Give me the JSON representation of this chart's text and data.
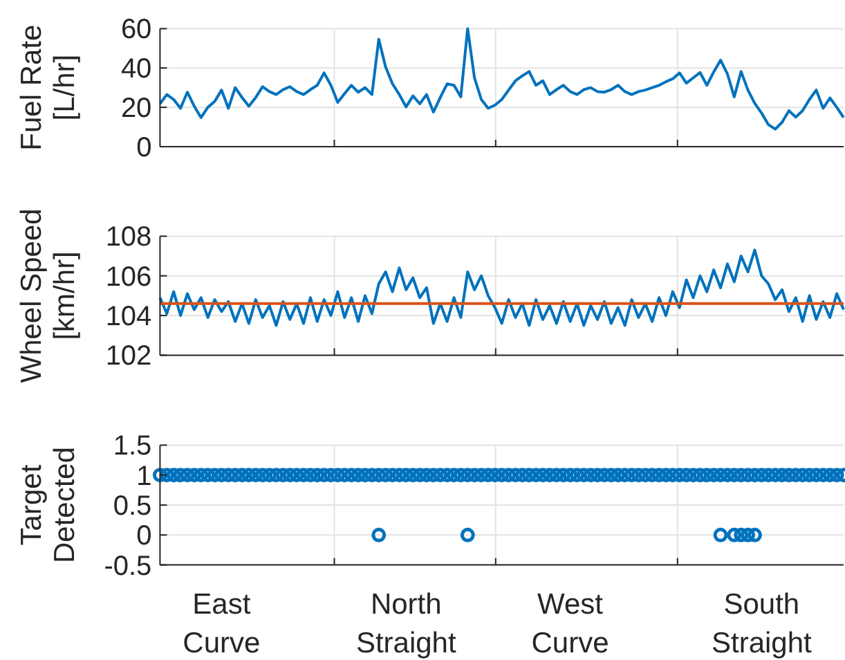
{
  "chart_data": [
    {
      "type": "line",
      "ylabel": "Fuel Rate\n[L/hr]",
      "categories": [
        null,
        null,
        null,
        null,
        null,
        null,
        null,
        null,
        null,
        null,
        null,
        null,
        null,
        null,
        null,
        null,
        null,
        null,
        null,
        null,
        null,
        null,
        null,
        null,
        null,
        null,
        null,
        null,
        null,
        null,
        null,
        null,
        null,
        null,
        null,
        null,
        null,
        null,
        null,
        null,
        null,
        null,
        null,
        null,
        null,
        null,
        null,
        null,
        null,
        null,
        null,
        null,
        null,
        null,
        null,
        null,
        null,
        null,
        null,
        null,
        null,
        null,
        null,
        null,
        null,
        null,
        null,
        null,
        null,
        null,
        null,
        null,
        null,
        null,
        null,
        null,
        null,
        null,
        null,
        null,
        null,
        null,
        null,
        null,
        null,
        null,
        null,
        null,
        null,
        null,
        null,
        null,
        null,
        null,
        null,
        null,
        null,
        null,
        null,
        null,
        null
      ],
      "ylim": [
        0,
        60
      ],
      "yticks": [
        0,
        20,
        40,
        60
      ],
      "tick_labels": "y",
      "grid": true,
      "series": [
        {
          "color": "#0072bd",
          "values": [
            21.8,
            26.5,
            24,
            19.5,
            27.7,
            20.6,
            14.8,
            20,
            23,
            28.8,
            19.5,
            30,
            25,
            20.6,
            25,
            30.5,
            28,
            26.5,
            29,
            30.5,
            28,
            26.5,
            29,
            31.2,
            37.5,
            31.2,
            22.5,
            27,
            31.2,
            27.7,
            30,
            26.5,
            54.6,
            40.5,
            32,
            26.5,
            20.2,
            25.8,
            21.8,
            26.5,
            17.6,
            25,
            31.9,
            31.2,
            25.3,
            60,
            35,
            24,
            19.5,
            21.1,
            24,
            28.8,
            33.5,
            36,
            38.2,
            31.2,
            33.5,
            26.5,
            29,
            31.2,
            28,
            26.5,
            29,
            30,
            28,
            27.7,
            29,
            31.2,
            28,
            26.5,
            28,
            28.8,
            30,
            31.2,
            33,
            34.5,
            37.5,
            32.3,
            35,
            37.7,
            31.2,
            38,
            44,
            37,
            25.3,
            38.2,
            28.8,
            22,
            17.1,
            11.2,
            8.9,
            12.4,
            18.3,
            15,
            18.3,
            24,
            28.8,
            19.5,
            24.8,
            20,
            14.8
          ]
        }
      ]
    },
    {
      "type": "line",
      "ylabel": "Wheel Speed\n[km/hr]",
      "categories": [
        null,
        null,
        null,
        null,
        null,
        null,
        null,
        null,
        null,
        null,
        null,
        null,
        null,
        null,
        null,
        null,
        null,
        null,
        null,
        null,
        null,
        null,
        null,
        null,
        null,
        null,
        null,
        null,
        null,
        null,
        null,
        null,
        null,
        null,
        null,
        null,
        null,
        null,
        null,
        null,
        null,
        null,
        null,
        null,
        null,
        null,
        null,
        null,
        null,
        null,
        null,
        null,
        null,
        null,
        null,
        null,
        null,
        null,
        null,
        null,
        null,
        null,
        null,
        null,
        null,
        null,
        null,
        null,
        null,
        null,
        null,
        null,
        null,
        null,
        null,
        null,
        null,
        null,
        null,
        null,
        null,
        null,
        null,
        null,
        null,
        null,
        null,
        null,
        null,
        null,
        null,
        null,
        null,
        null,
        null,
        null,
        null,
        null,
        null,
        null,
        null
      ],
      "ylim": [
        102,
        108
      ],
      "yticks": [
        102,
        104,
        106,
        108
      ],
      "tick_labels": "y",
      "grid": true,
      "series": [
        {
          "color": "#0072bd",
          "values": [
            104.9,
            104.1,
            105.2,
            104.0,
            105.1,
            104.3,
            104.9,
            103.9,
            104.8,
            104.2,
            104.7,
            103.7,
            104.6,
            103.6,
            104.8,
            103.9,
            104.5,
            103.5,
            104.7,
            103.8,
            104.6,
            103.6,
            104.9,
            103.7,
            104.8,
            104.0,
            105.2,
            103.9,
            104.9,
            103.7,
            105.0,
            104.1,
            105.6,
            106.2,
            105.2,
            106.4,
            105.3,
            105.9,
            104.9,
            105.4,
            103.6,
            104.6,
            103.7,
            104.9,
            103.9,
            106.2,
            105.3,
            106.0,
            105.0,
            104.4,
            103.6,
            104.8,
            103.9,
            104.6,
            103.5,
            104.8,
            103.8,
            104.5,
            103.6,
            104.7,
            103.7,
            104.6,
            103.5,
            104.5,
            103.8,
            104.7,
            103.6,
            104.4,
            103.5,
            104.8,
            103.9,
            104.6,
            103.7,
            104.9,
            104.0,
            105.2,
            104.4,
            105.8,
            104.9,
            106.0,
            105.2,
            106.3,
            105.4,
            106.6,
            105.7,
            107.0,
            106.2,
            107.3,
            106.0,
            105.6,
            104.8,
            105.3,
            104.2,
            104.9,
            103.7,
            105.0,
            103.8,
            104.7,
            103.9,
            105.1,
            104.3
          ]
        },
        {
          "color": "#d95319",
          "values": [
            104.6,
            104.6,
            104.6,
            104.6,
            104.6,
            104.6,
            104.6,
            104.6,
            104.6,
            104.6,
            104.6,
            104.6,
            104.6,
            104.6,
            104.6,
            104.6,
            104.6,
            104.6,
            104.6,
            104.6,
            104.6,
            104.6,
            104.6,
            104.6,
            104.6,
            104.6,
            104.6,
            104.6,
            104.6,
            104.6,
            104.6,
            104.6,
            104.6,
            104.6,
            104.6,
            104.6,
            104.6,
            104.6,
            104.6,
            104.6,
            104.6,
            104.6,
            104.6,
            104.6,
            104.6,
            104.6,
            104.6,
            104.6,
            104.6,
            104.6,
            104.6,
            104.6,
            104.6,
            104.6,
            104.6,
            104.6,
            104.6,
            104.6,
            104.6,
            104.6,
            104.6,
            104.6,
            104.6,
            104.6,
            104.6,
            104.6,
            104.6,
            104.6,
            104.6,
            104.6,
            104.6,
            104.6,
            104.6,
            104.6,
            104.6,
            104.6,
            104.6,
            104.6,
            104.6,
            104.6,
            104.6,
            104.6,
            104.6,
            104.6,
            104.6,
            104.6,
            104.6,
            104.6,
            104.6,
            104.6,
            104.6,
            104.6,
            104.6,
            104.6,
            104.6,
            104.6,
            104.6,
            104.6,
            104.6,
            104.6,
            104.6
          ]
        }
      ]
    },
    {
      "type": "scatter",
      "ylabel": "Target\nDetected",
      "marker": "circle",
      "categories": [
        null,
        null,
        null,
        null,
        null,
        null,
        null,
        null,
        null,
        "East\nCurve",
        null,
        null,
        null,
        null,
        null,
        null,
        null,
        null,
        null,
        null,
        null,
        null,
        null,
        null,
        null,
        null,
        null,
        null,
        null,
        null,
        null,
        null,
        null,
        null,
        null,
        null,
        "North\nStraight",
        null,
        null,
        null,
        null,
        null,
        null,
        null,
        null,
        null,
        null,
        null,
        null,
        null,
        null,
        null,
        null,
        null,
        null,
        null,
        null,
        null,
        null,
        null,
        "West\nCurve",
        null,
        null,
        null,
        null,
        null,
        null,
        null,
        null,
        null,
        null,
        null,
        null,
        null,
        null,
        null,
        null,
        null,
        null,
        null,
        null,
        null,
        null,
        null,
        null,
        null,
        null,
        null,
        "South\nStraight",
        null,
        null,
        null,
        null,
        null,
        null,
        null,
        null,
        null,
        null,
        null,
        null
      ],
      "ylim": [
        -0.5,
        1.5
      ],
      "yticks": [
        -0.5,
        0,
        0.5,
        1,
        1.5
      ],
      "grid": true,
      "series": [
        {
          "color": "#0072bd",
          "values": [
            1,
            1,
            1,
            1,
            1,
            1,
            1,
            1,
            1,
            1,
            1,
            1,
            1,
            1,
            1,
            1,
            1,
            1,
            1,
            1,
            1,
            1,
            1,
            1,
            1,
            1,
            1,
            1,
            1,
            1,
            1,
            1,
            1,
            1,
            1,
            1,
            1,
            1,
            1,
            1,
            1,
            1,
            1,
            1,
            1,
            1,
            1,
            1,
            1,
            1,
            1,
            1,
            1,
            1,
            1,
            1,
            1,
            1,
            1,
            1,
            1,
            1,
            1,
            1,
            1,
            1,
            1,
            1,
            1,
            1,
            1,
            1,
            1,
            1,
            1,
            1,
            1,
            1,
            1,
            1,
            1,
            1,
            1,
            1,
            1,
            1,
            1,
            1,
            1,
            1,
            1,
            1,
            1,
            1,
            1,
            1,
            1,
            1,
            1,
            1,
            1
          ]
        },
        {
          "color": "#0072bd",
          "values": [
            null,
            null,
            null,
            null,
            null,
            null,
            null,
            null,
            null,
            null,
            null,
            null,
            null,
            null,
            null,
            null,
            null,
            null,
            null,
            null,
            null,
            null,
            null,
            null,
            null,
            null,
            null,
            null,
            null,
            null,
            null,
            null,
            0,
            null,
            null,
            null,
            null,
            null,
            null,
            null,
            null,
            null,
            null,
            null,
            null,
            0,
            null,
            null,
            null,
            null,
            null,
            null,
            null,
            null,
            null,
            null,
            null,
            null,
            null,
            null,
            null,
            null,
            null,
            null,
            null,
            null,
            null,
            null,
            null,
            null,
            null,
            null,
            null,
            null,
            null,
            null,
            null,
            null,
            null,
            null,
            null,
            null,
            0,
            null,
            0,
            0,
            0,
            0,
            null,
            null,
            null,
            null,
            null,
            null,
            null,
            null,
            null,
            null,
            null,
            null,
            null
          ]
        }
      ]
    }
  ]
}
